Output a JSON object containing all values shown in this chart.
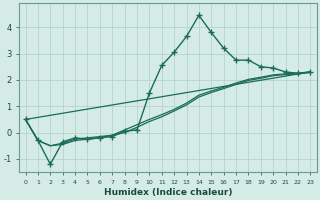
{
  "xlabel": "Humidex (Indice chaleur)",
  "ylabel": "",
  "background_color": "#d5ece6",
  "grid_color": "#b8d4ce",
  "line_color": "#1a6b5a",
  "xlim": [
    -0.5,
    23.5
  ],
  "ylim": [
    -1.5,
    4.9
  ],
  "xticks": [
    0,
    1,
    2,
    3,
    4,
    5,
    6,
    7,
    8,
    9,
    10,
    11,
    12,
    13,
    14,
    15,
    16,
    17,
    18,
    19,
    20,
    21,
    22,
    23
  ],
  "yticks": [
    -1,
    0,
    1,
    2,
    3,
    4
  ],
  "series": [
    {
      "x": [
        0,
        1,
        2,
        3,
        4,
        5,
        6,
        7,
        8,
        9,
        10,
        11,
        12,
        13,
        14,
        15,
        16,
        17,
        18,
        19,
        20,
        21,
        22,
        23
      ],
      "y": [
        0.5,
        -0.3,
        -1.2,
        -0.35,
        -0.2,
        -0.25,
        -0.2,
        -0.15,
        0.05,
        0.1,
        1.5,
        2.55,
        3.05,
        3.65,
        4.45,
        3.8,
        3.2,
        2.75,
        2.75,
        2.5,
        2.45,
        2.3,
        2.25,
        2.3
      ],
      "marker": "+",
      "markersize": 4,
      "linewidth": 1.0,
      "zorder": 3
    },
    {
      "x": [
        0,
        23
      ],
      "y": [
        0.5,
        2.3
      ],
      "marker": null,
      "markersize": 0,
      "linewidth": 0.9,
      "zorder": 2
    },
    {
      "x": [
        0,
        1,
        2,
        3,
        4,
        5,
        6,
        7,
        8,
        9,
        10,
        11,
        12,
        13,
        14,
        15,
        16,
        17,
        18,
        19,
        20,
        21,
        22,
        23
      ],
      "y": [
        0.5,
        -0.3,
        -0.5,
        -0.4,
        -0.25,
        -0.2,
        -0.15,
        -0.1,
        0.1,
        0.3,
        0.5,
        0.68,
        0.88,
        1.12,
        1.42,
        1.58,
        1.72,
        1.88,
        2.02,
        2.1,
        2.19,
        2.23,
        2.26,
        2.3
      ],
      "marker": null,
      "markersize": 0,
      "linewidth": 0.9,
      "zorder": 2
    },
    {
      "x": [
        0,
        1,
        2,
        3,
        4,
        5,
        6,
        7,
        8,
        9,
        10,
        11,
        12,
        13,
        14,
        15,
        16,
        17,
        18,
        19,
        20,
        21,
        22,
        23
      ],
      "y": [
        0.5,
        -0.3,
        -0.5,
        -0.45,
        -0.3,
        -0.25,
        -0.2,
        -0.1,
        0.0,
        0.2,
        0.42,
        0.6,
        0.82,
        1.05,
        1.35,
        1.52,
        1.67,
        1.83,
        1.98,
        2.06,
        2.16,
        2.2,
        2.23,
        2.28
      ],
      "marker": null,
      "markersize": 0,
      "linewidth": 0.9,
      "zorder": 2
    }
  ]
}
